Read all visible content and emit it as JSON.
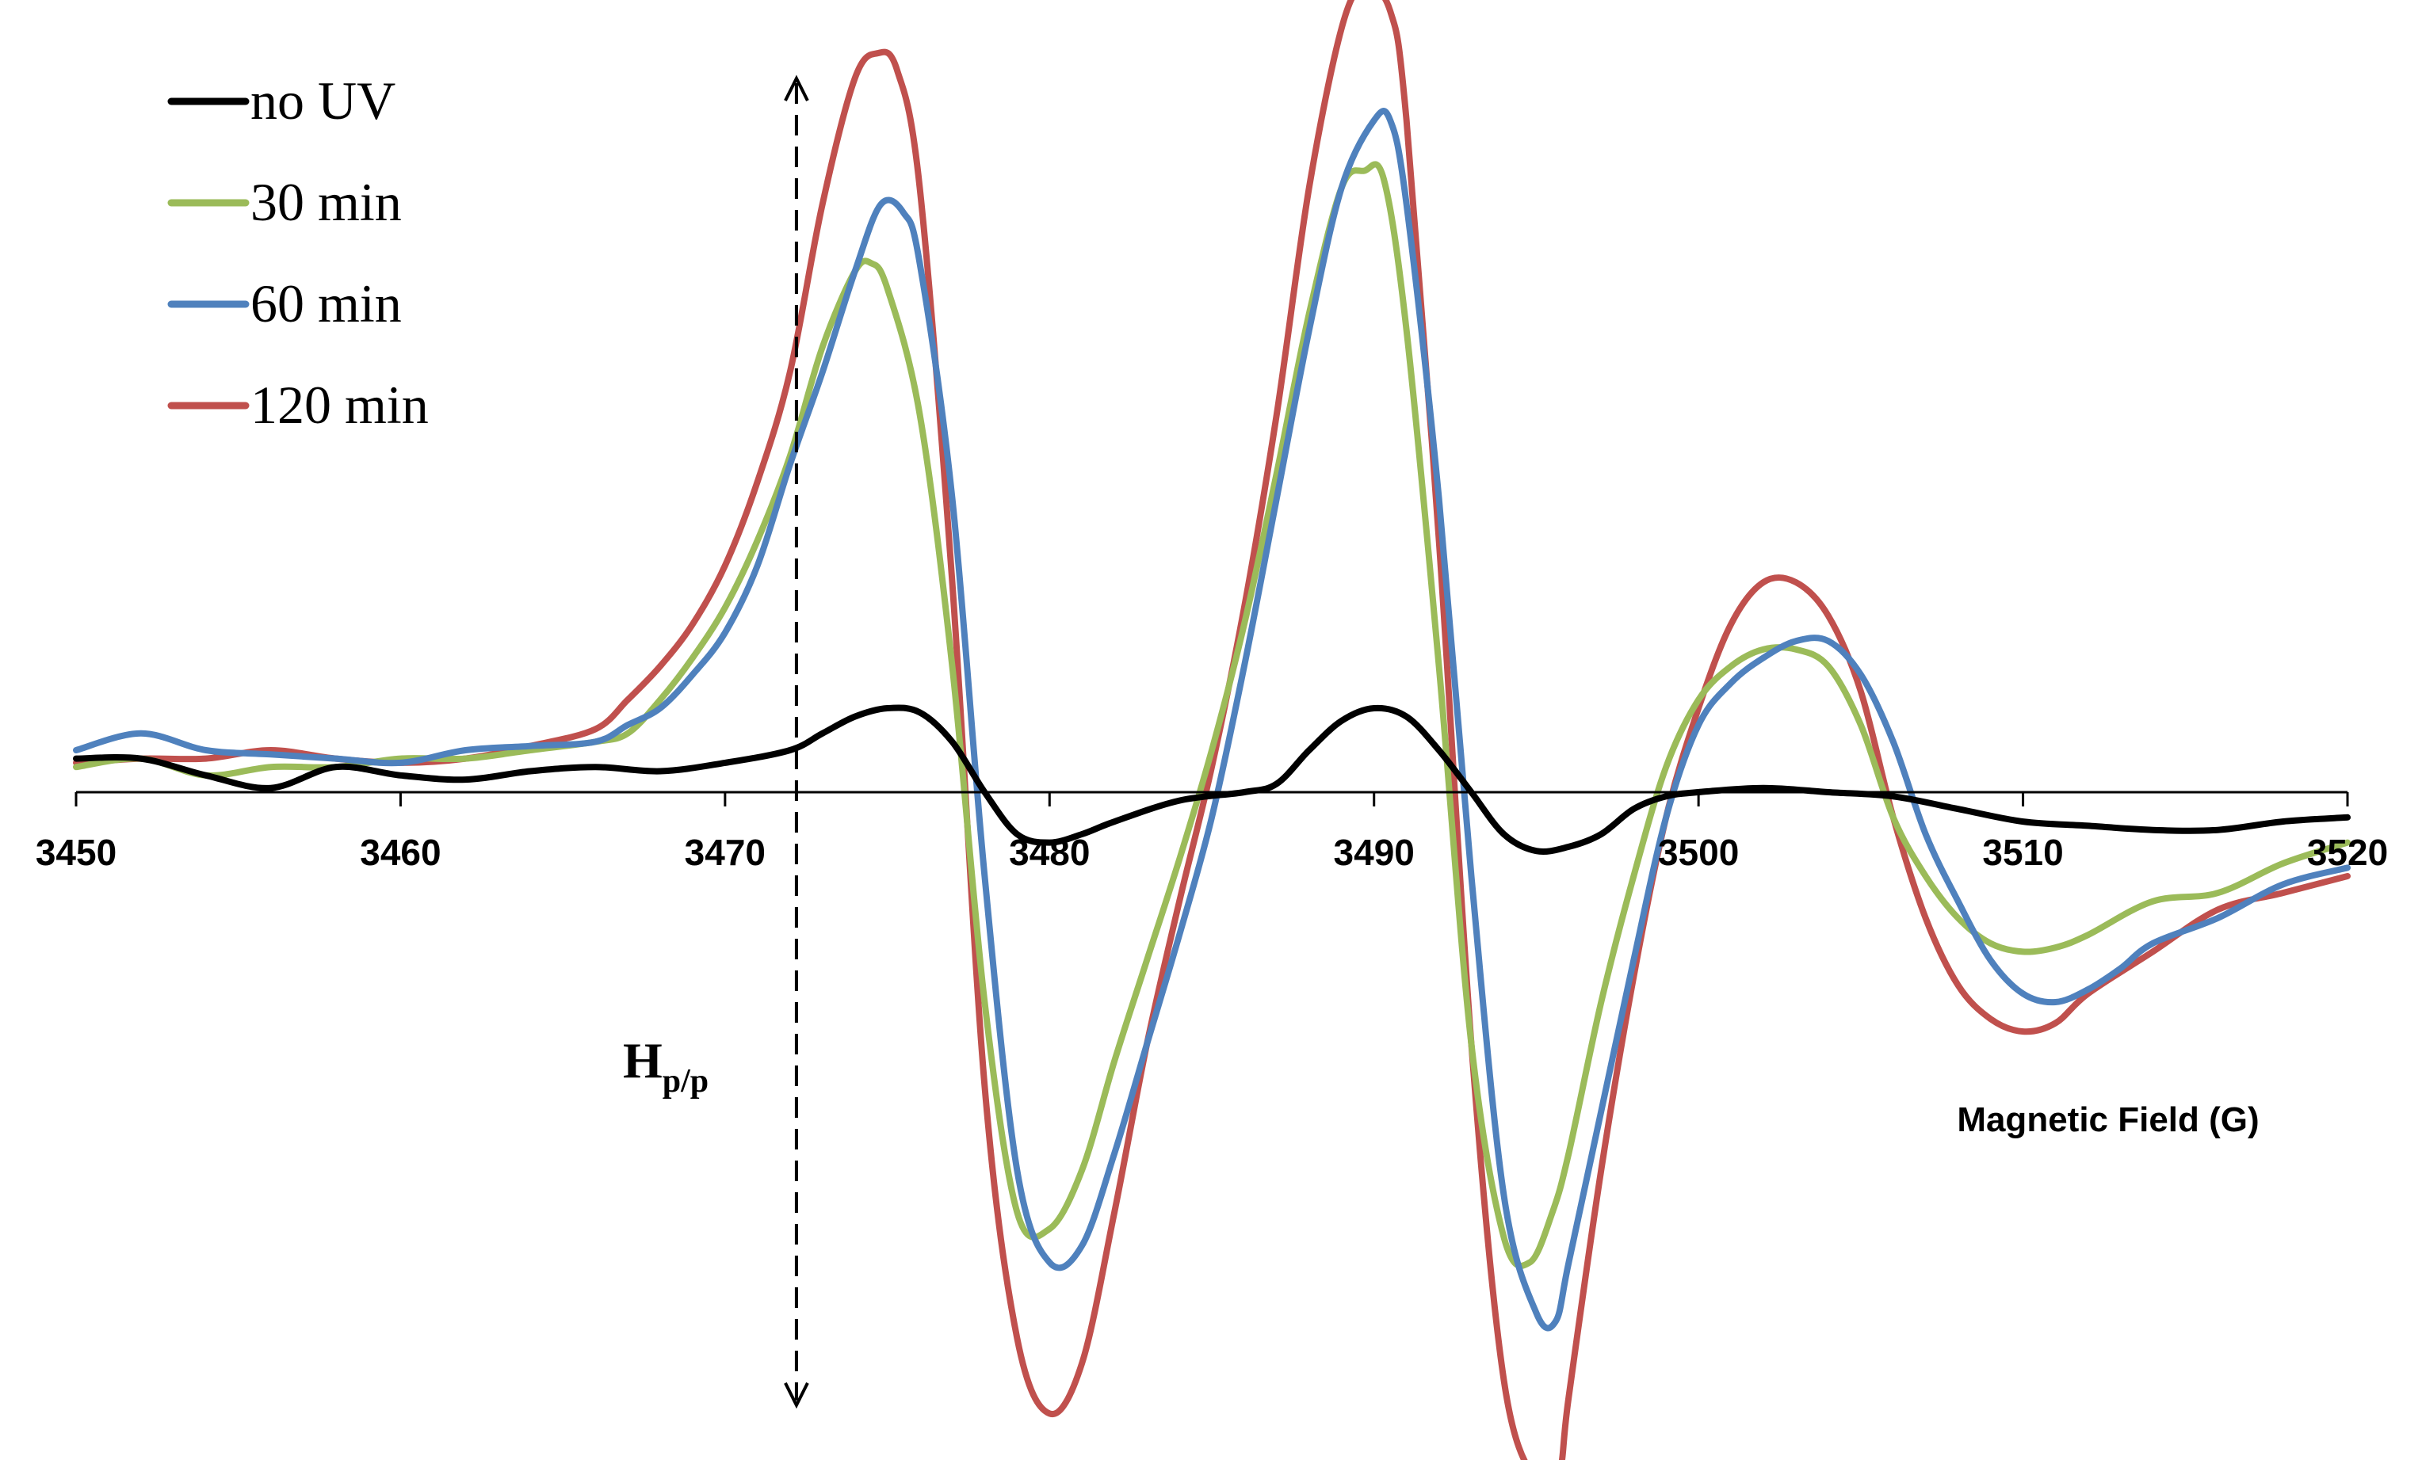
{
  "chart_data": {
    "type": "line",
    "title": "",
    "xlabel": "Magnetic Field (G)",
    "ylabel": "",
    "xlim": [
      3450,
      3520
    ],
    "ylim": [
      -8.5,
      9.5
    ],
    "xticks": [
      3450,
      3460,
      3470,
      3480,
      3490,
      3500,
      3510,
      3520
    ],
    "grid": false,
    "legend_position": "top-left",
    "annotation": {
      "main": "H",
      "sub": "p/p",
      "x": 3472.2,
      "y_top": 8.5,
      "y_bottom": -7.3
    },
    "series": [
      {
        "name": "no UV",
        "color": "#000000",
        "points": [
          [
            3450,
            0.4
          ],
          [
            3452,
            0.4
          ],
          [
            3454,
            0.2
          ],
          [
            3456,
            0.05
          ],
          [
            3458,
            0.3
          ],
          [
            3460,
            0.2
          ],
          [
            3462,
            0.15
          ],
          [
            3464,
            0.25
          ],
          [
            3466,
            0.3
          ],
          [
            3468,
            0.25
          ],
          [
            3470,
            0.35
          ],
          [
            3472,
            0.5
          ],
          [
            3473,
            0.7
          ],
          [
            3474,
            0.9
          ],
          [
            3475,
            1.0
          ],
          [
            3476,
            0.95
          ],
          [
            3477,
            0.6
          ],
          [
            3478,
            0.0
          ],
          [
            3479,
            -0.5
          ],
          [
            3480,
            -0.6
          ],
          [
            3481,
            -0.5
          ],
          [
            3482,
            -0.35
          ],
          [
            3484,
            -0.1
          ],
          [
            3486,
            0.0
          ],
          [
            3487,
            0.1
          ],
          [
            3488,
            0.5
          ],
          [
            3489,
            0.85
          ],
          [
            3490,
            1.0
          ],
          [
            3491,
            0.9
          ],
          [
            3492,
            0.5
          ],
          [
            3493,
            0.0
          ],
          [
            3494,
            -0.5
          ],
          [
            3495,
            -0.7
          ],
          [
            3496,
            -0.65
          ],
          [
            3497,
            -0.5
          ],
          [
            3498,
            -0.2
          ],
          [
            3499,
            -0.05
          ],
          [
            3500,
            0.0
          ],
          [
            3502,
            0.05
          ],
          [
            3504,
            0.0
          ],
          [
            3506,
            -0.05
          ],
          [
            3508,
            -0.2
          ],
          [
            3510,
            -0.35
          ],
          [
            3512,
            -0.4
          ],
          [
            3514,
            -0.45
          ],
          [
            3516,
            -0.45
          ],
          [
            3518,
            -0.35
          ],
          [
            3520,
            -0.3
          ]
        ]
      },
      {
        "name": "30 min",
        "color": "#9BBB59",
        "points": [
          [
            3450,
            0.3
          ],
          [
            3452,
            0.4
          ],
          [
            3454,
            0.2
          ],
          [
            3456,
            0.3
          ],
          [
            3458,
            0.3
          ],
          [
            3460,
            0.4
          ],
          [
            3462,
            0.4
          ],
          [
            3464,
            0.5
          ],
          [
            3466,
            0.6
          ],
          [
            3467,
            0.7
          ],
          [
            3468,
            1.1
          ],
          [
            3469,
            1.6
          ],
          [
            3470,
            2.2
          ],
          [
            3471,
            3.0
          ],
          [
            3472,
            4.0
          ],
          [
            3473,
            5.3
          ],
          [
            3474,
            6.2
          ],
          [
            3474.5,
            6.3
          ],
          [
            3475,
            6.0
          ],
          [
            3476,
            4.5
          ],
          [
            3477,
            1.5
          ],
          [
            3478,
            -2.5
          ],
          [
            3479,
            -5.0
          ],
          [
            3480,
            -5.2
          ],
          [
            3481,
            -4.5
          ],
          [
            3482,
            -3.2
          ],
          [
            3483,
            -2.0
          ],
          [
            3484,
            -0.8
          ],
          [
            3485,
            0.5
          ],
          [
            3486,
            2.0
          ],
          [
            3487,
            3.8
          ],
          [
            3488,
            5.7
          ],
          [
            3489,
            7.2
          ],
          [
            3489.7,
            7.4
          ],
          [
            3490.3,
            7.3
          ],
          [
            3491,
            5.5
          ],
          [
            3492,
            1.5
          ],
          [
            3493,
            -3.0
          ],
          [
            3494,
            -5.3
          ],
          [
            3494.8,
            -5.6
          ],
          [
            3495.5,
            -5.0
          ],
          [
            3496,
            -4.3
          ],
          [
            3497,
            -2.5
          ],
          [
            3498,
            -1.0
          ],
          [
            3499,
            0.3
          ],
          [
            3500,
            1.1
          ],
          [
            3501,
            1.5
          ],
          [
            3502,
            1.7
          ],
          [
            3503,
            1.7
          ],
          [
            3504,
            1.5
          ],
          [
            3505,
            0.8
          ],
          [
            3506,
            -0.3
          ],
          [
            3507,
            -1.0
          ],
          [
            3508,
            -1.5
          ],
          [
            3509,
            -1.8
          ],
          [
            3510,
            -1.9
          ],
          [
            3511,
            -1.85
          ],
          [
            3512,
            -1.7
          ],
          [
            3514,
            -1.3
          ],
          [
            3516,
            -1.2
          ],
          [
            3518,
            -0.85
          ],
          [
            3520,
            -0.6
          ]
        ]
      },
      {
        "name": "60 min",
        "color": "#4F81BD",
        "points": [
          [
            3450,
            0.5
          ],
          [
            3452,
            0.7
          ],
          [
            3454,
            0.5
          ],
          [
            3456,
            0.45
          ],
          [
            3458,
            0.4
          ],
          [
            3460,
            0.35
          ],
          [
            3462,
            0.5
          ],
          [
            3464,
            0.55
          ],
          [
            3466,
            0.6
          ],
          [
            3467,
            0.8
          ],
          [
            3468,
            1.0
          ],
          [
            3469,
            1.4
          ],
          [
            3470,
            1.9
          ],
          [
            3471,
            2.7
          ],
          [
            3472,
            3.9
          ],
          [
            3473,
            5.0
          ],
          [
            3474,
            6.2
          ],
          [
            3474.8,
            7.0
          ],
          [
            3475.5,
            6.9
          ],
          [
            3476,
            6.3
          ],
          [
            3477,
            3.5
          ],
          [
            3478,
            -1.0
          ],
          [
            3479,
            -4.5
          ],
          [
            3480,
            -5.6
          ],
          [
            3481,
            -5.4
          ],
          [
            3482,
            -4.3
          ],
          [
            3483,
            -3.0
          ],
          [
            3484,
            -1.7
          ],
          [
            3485,
            -0.3
          ],
          [
            3486,
            1.5
          ],
          [
            3487,
            3.5
          ],
          [
            3488,
            5.5
          ],
          [
            3489,
            7.2
          ],
          [
            3490,
            8.0
          ],
          [
            3490.5,
            8.0
          ],
          [
            3491,
            7.0
          ],
          [
            3492,
            3.5
          ],
          [
            3493,
            -1.0
          ],
          [
            3494,
            -4.8
          ],
          [
            3495,
            -6.2
          ],
          [
            3495.6,
            -6.3
          ],
          [
            3496,
            -5.6
          ],
          [
            3497,
            -3.8
          ],
          [
            3498,
            -2.0
          ],
          [
            3499,
            -0.3
          ],
          [
            3500,
            0.8
          ],
          [
            3501,
            1.3
          ],
          [
            3502,
            1.6
          ],
          [
            3503,
            1.8
          ],
          [
            3504,
            1.8
          ],
          [
            3505,
            1.4
          ],
          [
            3506,
            0.6
          ],
          [
            3507,
            -0.5
          ],
          [
            3508,
            -1.3
          ],
          [
            3509,
            -2.0
          ],
          [
            3510,
            -2.4
          ],
          [
            3511,
            -2.5
          ],
          [
            3512,
            -2.35
          ],
          [
            3513,
            -2.1
          ],
          [
            3514,
            -1.8
          ],
          [
            3516,
            -1.5
          ],
          [
            3518,
            -1.1
          ],
          [
            3520,
            -0.9
          ]
        ]
      },
      {
        "name": "120 min",
        "color": "#C0504D",
        "points": [
          [
            3450,
            0.35
          ],
          [
            3452,
            0.4
          ],
          [
            3454,
            0.4
          ],
          [
            3456,
            0.5
          ],
          [
            3458,
            0.4
          ],
          [
            3460,
            0.35
          ],
          [
            3462,
            0.4
          ],
          [
            3464,
            0.55
          ],
          [
            3466,
            0.75
          ],
          [
            3467,
            1.1
          ],
          [
            3468,
            1.5
          ],
          [
            3469,
            2.0
          ],
          [
            3470,
            2.7
          ],
          [
            3471,
            3.7
          ],
          [
            3472,
            5.0
          ],
          [
            3473,
            7.0
          ],
          [
            3474,
            8.5
          ],
          [
            3474.7,
            8.8
          ],
          [
            3475.3,
            8.6
          ],
          [
            3476,
            7.2
          ],
          [
            3477,
            2.5
          ],
          [
            3478,
            -3.5
          ],
          [
            3479,
            -6.5
          ],
          [
            3480,
            -7.4
          ],
          [
            3481,
            -6.8
          ],
          [
            3482,
            -5.0
          ],
          [
            3483,
            -3.0
          ],
          [
            3484,
            -1.3
          ],
          [
            3485,
            0.3
          ],
          [
            3486,
            2.2
          ],
          [
            3487,
            4.5
          ],
          [
            3488,
            7.2
          ],
          [
            3489,
            9.1
          ],
          [
            3489.7,
            9.6
          ],
          [
            3490.5,
            9.3
          ],
          [
            3491,
            8.0
          ],
          [
            3492,
            3.0
          ],
          [
            3493,
            -3.0
          ],
          [
            3494,
            -7.0
          ],
          [
            3495,
            -8.2
          ],
          [
            3495.7,
            -8.1
          ],
          [
            3496,
            -7.2
          ],
          [
            3497,
            -4.5
          ],
          [
            3498,
            -2.2
          ],
          [
            3499,
            -0.3
          ],
          [
            3500,
            1.0
          ],
          [
            3501,
            2.0
          ],
          [
            3502,
            2.5
          ],
          [
            3503,
            2.5
          ],
          [
            3504,
            2.1
          ],
          [
            3505,
            1.2
          ],
          [
            3506,
            -0.3
          ],
          [
            3507,
            -1.5
          ],
          [
            3508,
            -2.3
          ],
          [
            3509,
            -2.7
          ],
          [
            3510,
            -2.85
          ],
          [
            3511,
            -2.75
          ],
          [
            3512,
            -2.4
          ],
          [
            3514,
            -1.9
          ],
          [
            3516,
            -1.4
          ],
          [
            3518,
            -1.2
          ],
          [
            3520,
            -1.0
          ]
        ]
      }
    ]
  }
}
